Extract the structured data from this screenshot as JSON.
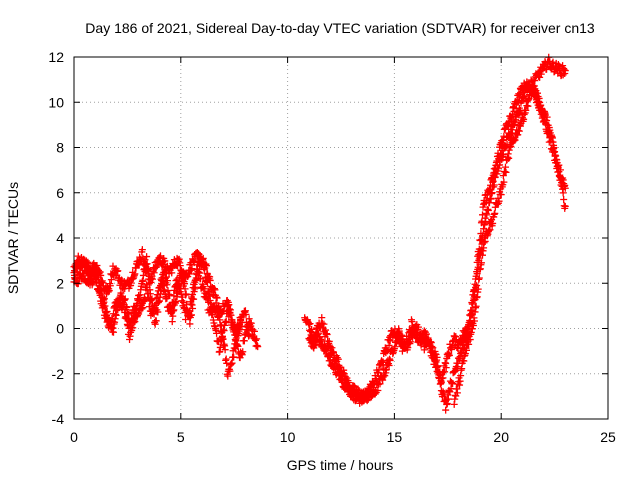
{
  "chart_data": {
    "type": "scatter",
    "title": "Day 186 of 2021, Sidereal Day-to-day VTEC variation (SDTVAR) for receiver cn13",
    "xlabel": "GPS time / hours",
    "ylabel": "SDTVAR / TECUs",
    "xlim": [
      0,
      25
    ],
    "ylim": [
      -4,
      12
    ],
    "xticks": [
      0,
      5,
      10,
      15,
      20,
      25
    ],
    "yticks": [
      -4,
      -2,
      0,
      2,
      4,
      6,
      8,
      10,
      12
    ],
    "grid": true,
    "marker": "+",
    "series": [
      {
        "name": "SDTVAR",
        "color": "#ff0000",
        "segments": [
          [
            [
              0.0,
              2.4
            ],
            [
              0.2,
              2.7
            ],
            [
              0.4,
              2.9
            ],
            [
              0.6,
              2.6
            ],
            [
              0.8,
              2.3
            ],
            [
              1.0,
              2.7
            ],
            [
              1.2,
              2.0
            ],
            [
              1.4,
              1.2
            ],
            [
              1.6,
              0.5
            ],
            [
              1.8,
              -0.2
            ],
            [
              2.0,
              0.8
            ],
            [
              2.2,
              1.5
            ],
            [
              2.4,
              0.6
            ],
            [
              2.6,
              -0.3
            ],
            [
              2.8,
              0.3
            ],
            [
              3.0,
              1.2
            ],
            [
              3.2,
              2.0
            ],
            [
              3.4,
              3.1
            ],
            [
              3.6,
              1.4
            ],
            [
              3.8,
              0.2
            ],
            [
              4.0,
              1.4
            ],
            [
              4.2,
              2.6
            ],
            [
              4.4,
              1.8
            ],
            [
              4.6,
              0.4
            ],
            [
              4.8,
              1.5
            ],
            [
              5.0,
              2.4
            ],
            [
              5.2,
              1.7
            ],
            [
              5.4,
              0.3
            ],
            [
              5.6,
              1.2
            ],
            [
              5.8,
              2.9
            ],
            [
              6.0,
              3.0
            ],
            [
              6.2,
              2.2
            ],
            [
              6.4,
              1.0
            ],
            [
              6.6,
              0.2
            ],
            [
              6.8,
              -0.9
            ],
            [
              7.0,
              -0.2
            ],
            [
              7.2,
              0.9
            ],
            [
              7.4,
              0.2
            ],
            [
              7.6,
              -0.7
            ],
            [
              7.8,
              -1.2
            ],
            [
              8.0,
              -0.5
            ],
            [
              8.2,
              0.3
            ],
            [
              8.4,
              -0.2
            ],
            [
              8.6,
              -0.8
            ]
          ],
          [
            [
              0.0,
              2.0
            ],
            [
              0.2,
              2.2
            ],
            [
              0.4,
              2.4
            ],
            [
              0.6,
              2.2
            ],
            [
              0.8,
              2.1
            ],
            [
              1.0,
              2.3
            ],
            [
              1.2,
              1.6
            ],
            [
              1.4,
              0.8
            ],
            [
              1.6,
              0.2
            ],
            [
              1.8,
              0.4
            ],
            [
              2.0,
              1.3
            ],
            [
              2.2,
              0.9
            ],
            [
              2.4,
              1.1
            ],
            [
              2.6,
              0.4
            ],
            [
              2.8,
              0.8
            ],
            [
              3.0,
              0.6
            ],
            [
              3.2,
              1.0
            ],
            [
              3.4,
              1.8
            ],
            [
              3.6,
              0.8
            ],
            [
              3.8,
              0.9
            ],
            [
              4.0,
              2.0
            ],
            [
              4.2,
              1.9
            ],
            [
              4.4,
              0.9
            ],
            [
              4.6,
              1.0
            ],
            [
              4.8,
              2.1
            ],
            [
              5.0,
              1.6
            ],
            [
              5.2,
              0.6
            ],
            [
              5.4,
              0.7
            ],
            [
              5.6,
              1.9
            ],
            [
              5.8,
              2.6
            ],
            [
              6.0,
              1.8
            ],
            [
              6.2,
              1.3
            ],
            [
              6.4,
              0.6
            ],
            [
              6.6,
              0.9
            ],
            [
              6.8,
              0.4
            ],
            [
              7.0,
              -0.6
            ],
            [
              7.2,
              -2.0
            ],
            [
              7.4,
              -1.4
            ],
            [
              7.6,
              -0.5
            ],
            [
              7.8,
              0.2
            ],
            [
              8.0,
              0.7
            ],
            [
              8.2,
              -0.3
            ]
          ],
          [
            [
              0.0,
              2.6
            ],
            [
              0.2,
              3.0
            ],
            [
              0.4,
              2.9
            ],
            [
              0.6,
              2.8
            ],
            [
              0.8,
              2.6
            ],
            [
              1.0,
              2.8
            ],
            [
              1.2,
              2.5
            ],
            [
              1.4,
              1.8
            ],
            [
              1.6,
              1.6
            ],
            [
              1.8,
              2.6
            ],
            [
              2.0,
              2.5
            ],
            [
              2.2,
              2.0
            ],
            [
              2.4,
              1.9
            ],
            [
              2.6,
              2.0
            ],
            [
              2.8,
              2.5
            ],
            [
              3.0,
              2.9
            ],
            [
              3.2,
              3.3
            ],
            [
              3.4,
              2.6
            ],
            [
              3.6,
              2.2
            ],
            [
              3.8,
              2.7
            ],
            [
              4.0,
              3.1
            ],
            [
              4.2,
              2.9
            ],
            [
              4.4,
              2.5
            ],
            [
              4.6,
              2.7
            ],
            [
              4.8,
              3.0
            ],
            [
              5.0,
              2.8
            ],
            [
              5.2,
              2.3
            ],
            [
              5.4,
              2.6
            ],
            [
              5.6,
              3.0
            ],
            [
              5.8,
              3.2
            ],
            [
              6.0,
              3.0
            ],
            [
              6.2,
              2.6
            ],
            [
              6.4,
              1.9
            ],
            [
              6.6,
              1.5
            ],
            [
              6.8,
              0.8
            ],
            [
              7.0,
              0.9
            ],
            [
              7.2,
              1.2
            ],
            [
              7.4,
              0.3
            ],
            [
              7.6,
              -0.2
            ],
            [
              7.8,
              0.4
            ]
          ],
          [
            [
              10.8,
              0.4
            ],
            [
              11.0,
              0.2
            ],
            [
              11.2,
              -0.5
            ],
            [
              11.4,
              0.0
            ],
            [
              11.6,
              0.3
            ],
            [
              11.8,
              -0.3
            ],
            [
              12.0,
              -0.9
            ],
            [
              12.2,
              -1.2
            ],
            [
              12.4,
              -1.6
            ],
            [
              12.6,
              -2.0
            ],
            [
              12.8,
              -2.4
            ],
            [
              13.0,
              -2.7
            ],
            [
              13.2,
              -2.8
            ],
            [
              13.4,
              -2.9
            ],
            [
              13.6,
              -3.0
            ],
            [
              13.8,
              -3.0
            ],
            [
              14.0,
              -2.9
            ],
            [
              14.2,
              -2.6
            ],
            [
              14.4,
              -2.2
            ],
            [
              14.6,
              -1.8
            ],
            [
              14.8,
              -1.3
            ],
            [
              15.0,
              -0.7
            ],
            [
              15.2,
              -0.2
            ],
            [
              15.4,
              -0.6
            ],
            [
              15.6,
              -0.8
            ],
            [
              15.8,
              -0.3
            ],
            [
              16.0,
              0.1
            ],
            [
              16.2,
              -0.3
            ],
            [
              16.4,
              -0.8
            ],
            [
              16.6,
              -0.5
            ],
            [
              16.8,
              -1.0
            ],
            [
              17.0,
              -1.4
            ],
            [
              17.2,
              -2.6
            ],
            [
              17.4,
              -3.4
            ],
            [
              17.6,
              -2.6
            ],
            [
              17.8,
              -2.0
            ],
            [
              18.0,
              -1.3
            ],
            [
              18.2,
              -0.8
            ],
            [
              18.4,
              -0.4
            ],
            [
              18.6,
              0.5
            ],
            [
              18.8,
              1.6
            ],
            [
              19.0,
              3.2
            ],
            [
              19.2,
              4.6
            ],
            [
              19.4,
              5.4
            ],
            [
              19.6,
              6.2
            ],
            [
              19.8,
              7.0
            ],
            [
              20.0,
              7.6
            ],
            [
              20.2,
              8.1
            ],
            [
              20.4,
              8.6
            ],
            [
              20.6,
              9.0
            ],
            [
              20.8,
              9.5
            ],
            [
              21.0,
              10.1
            ],
            [
              21.2,
              10.6
            ],
            [
              21.4,
              10.8
            ],
            [
              21.6,
              10.4
            ],
            [
              21.8,
              10.0
            ],
            [
              22.0,
              9.5
            ],
            [
              22.2,
              9.0
            ],
            [
              22.4,
              8.2
            ],
            [
              22.6,
              7.4
            ],
            [
              22.8,
              6.4
            ],
            [
              23.0,
              5.4
            ]
          ],
          [
            [
              11.0,
              -0.3
            ],
            [
              11.2,
              -0.8
            ],
            [
              11.4,
              -0.4
            ],
            [
              11.6,
              -0.6
            ],
            [
              11.8,
              -1.0
            ],
            [
              12.0,
              -1.4
            ],
            [
              12.2,
              -1.7
            ],
            [
              12.4,
              -2.0
            ],
            [
              12.6,
              -2.4
            ],
            [
              12.8,
              -2.6
            ],
            [
              13.0,
              -2.9
            ],
            [
              13.2,
              -3.0
            ],
            [
              13.4,
              -3.1
            ],
            [
              13.6,
              -3.0
            ],
            [
              13.8,
              -2.8
            ],
            [
              14.0,
              -2.5
            ],
            [
              14.2,
              -2.0
            ],
            [
              14.4,
              -1.5
            ],
            [
              14.6,
              -1.0
            ],
            [
              14.8,
              -0.4
            ],
            [
              15.0,
              -0.1
            ],
            [
              15.2,
              -0.4
            ],
            [
              15.4,
              -0.9
            ],
            [
              15.6,
              -0.5
            ],
            [
              15.8,
              0.2
            ],
            [
              16.0,
              -0.2
            ],
            [
              16.2,
              -0.7
            ],
            [
              16.4,
              -0.3
            ],
            [
              16.6,
              -0.6
            ],
            [
              16.8,
              -1.3
            ],
            [
              17.0,
              -1.8
            ],
            [
              17.2,
              -2.2
            ],
            [
              17.4,
              -1.6
            ],
            [
              17.6,
              -0.9
            ],
            [
              17.8,
              -0.5
            ],
            [
              18.0,
              -0.7
            ],
            [
              18.2,
              -0.3
            ],
            [
              18.4,
              -0.1
            ],
            [
              18.6,
              1.0
            ],
            [
              18.8,
              2.2
            ],
            [
              19.0,
              3.8
            ],
            [
              19.2,
              5.6
            ],
            [
              19.4,
              6.0
            ],
            [
              19.6,
              6.6
            ],
            [
              19.8,
              7.4
            ],
            [
              20.0,
              8.2
            ],
            [
              20.2,
              8.8
            ],
            [
              20.4,
              9.2
            ],
            [
              20.6,
              9.7
            ],
            [
              20.8,
              10.2
            ],
            [
              21.0,
              10.6
            ],
            [
              21.2,
              10.8
            ],
            [
              21.4,
              10.5
            ],
            [
              21.6,
              10.3
            ],
            [
              21.8,
              9.8
            ],
            [
              22.0,
              9.2
            ],
            [
              22.2,
              8.6
            ],
            [
              22.4,
              8.0
            ],
            [
              22.6,
              7.2
            ],
            [
              22.8,
              6.8
            ],
            [
              23.0,
              6.2
            ]
          ],
          [
            [
              17.8,
              -3.2
            ],
            [
              18.0,
              -2.5
            ],
            [
              18.2,
              -1.6
            ],
            [
              18.4,
              -0.8
            ],
            [
              18.6,
              -0.2
            ],
            [
              18.8,
              0.8
            ],
            [
              19.0,
              2.6
            ],
            [
              19.2,
              3.9
            ],
            [
              19.4,
              4.4
            ],
            [
              19.6,
              4.8
            ],
            [
              19.8,
              5.5
            ],
            [
              20.0,
              6.1
            ],
            [
              20.2,
              7.0
            ],
            [
              20.4,
              7.9
            ],
            [
              20.6,
              8.4
            ],
            [
              20.8,
              8.8
            ],
            [
              21.0,
              9.3
            ],
            [
              21.2,
              9.9
            ],
            [
              21.4,
              10.5
            ],
            [
              21.6,
              11.0
            ],
            [
              21.8,
              11.3
            ],
            [
              22.0,
              11.5
            ],
            [
              22.2,
              11.8
            ],
            [
              22.4,
              11.6
            ],
            [
              22.6,
              11.5
            ],
            [
              22.8,
              11.4
            ],
            [
              23.0,
              11.4
            ]
          ]
        ]
      }
    ]
  }
}
